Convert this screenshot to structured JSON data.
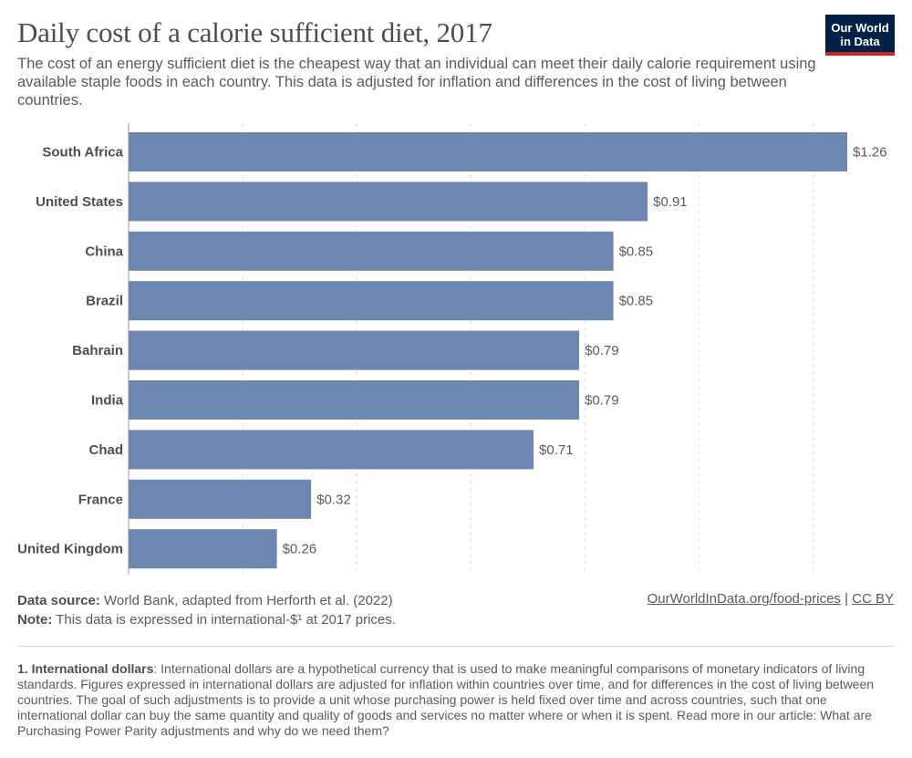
{
  "header": {
    "title": "Daily cost of a calorie sufficient diet, 2017",
    "subtitle": "The cost of an energy sufficient diet is the cheapest way that an individual can meet their daily calorie requirement using available staple foods in each country. This data is adjusted for inflation and differences in the cost of living between countries.",
    "logo_line1": "Our World",
    "logo_line2": "in Data"
  },
  "colors": {
    "bar": "#6d87b2",
    "logo_bg": "#002147",
    "logo_accent": "#ce261e"
  },
  "chart_data": {
    "type": "bar",
    "orientation": "horizontal",
    "categories": [
      "South Africa",
      "United States",
      "China",
      "Brazil",
      "Bahrain",
      "India",
      "Chad",
      "France",
      "United Kingdom"
    ],
    "values": [
      1.26,
      0.91,
      0.85,
      0.85,
      0.79,
      0.79,
      0.71,
      0.32,
      0.26
    ],
    "value_labels": [
      "$1.26",
      "$0.91",
      "$0.85",
      "$0.85",
      "$0.79",
      "$0.79",
      "$0.71",
      "$0.32",
      "$0.26"
    ],
    "xlim": [
      0,
      1.26
    ],
    "grid": true,
    "gridline_values": [
      0,
      0.2,
      0.4,
      0.6,
      0.8,
      1.0,
      1.2
    ]
  },
  "footer": {
    "source_label": "Data source:",
    "source_text": " World Bank, adapted from Herforth et al. (2022)",
    "note_label": "Note:",
    "note_text": " This data is expressed in international-$¹ at 2017 prices.",
    "url": "OurWorldInData.org/food-prices",
    "separator": " | ",
    "license": "CC BY",
    "footnote_label": "1. International dollars",
    "footnote_text": ": International dollars are a hypothetical currency that is used to make meaningful comparisons of monetary indicators of living standards. Figures expressed in international dollars are adjusted for inflation within countries over time, and for differences in the cost of living between countries. The goal of such adjustments is to provide a unit whose purchasing power is held fixed over time and across countries, such that one international dollar can buy the same quantity and quality of goods and services no matter where or when it is spent. Read more in our article: What are Purchasing Power Parity adjustments and why do we need them?"
  }
}
